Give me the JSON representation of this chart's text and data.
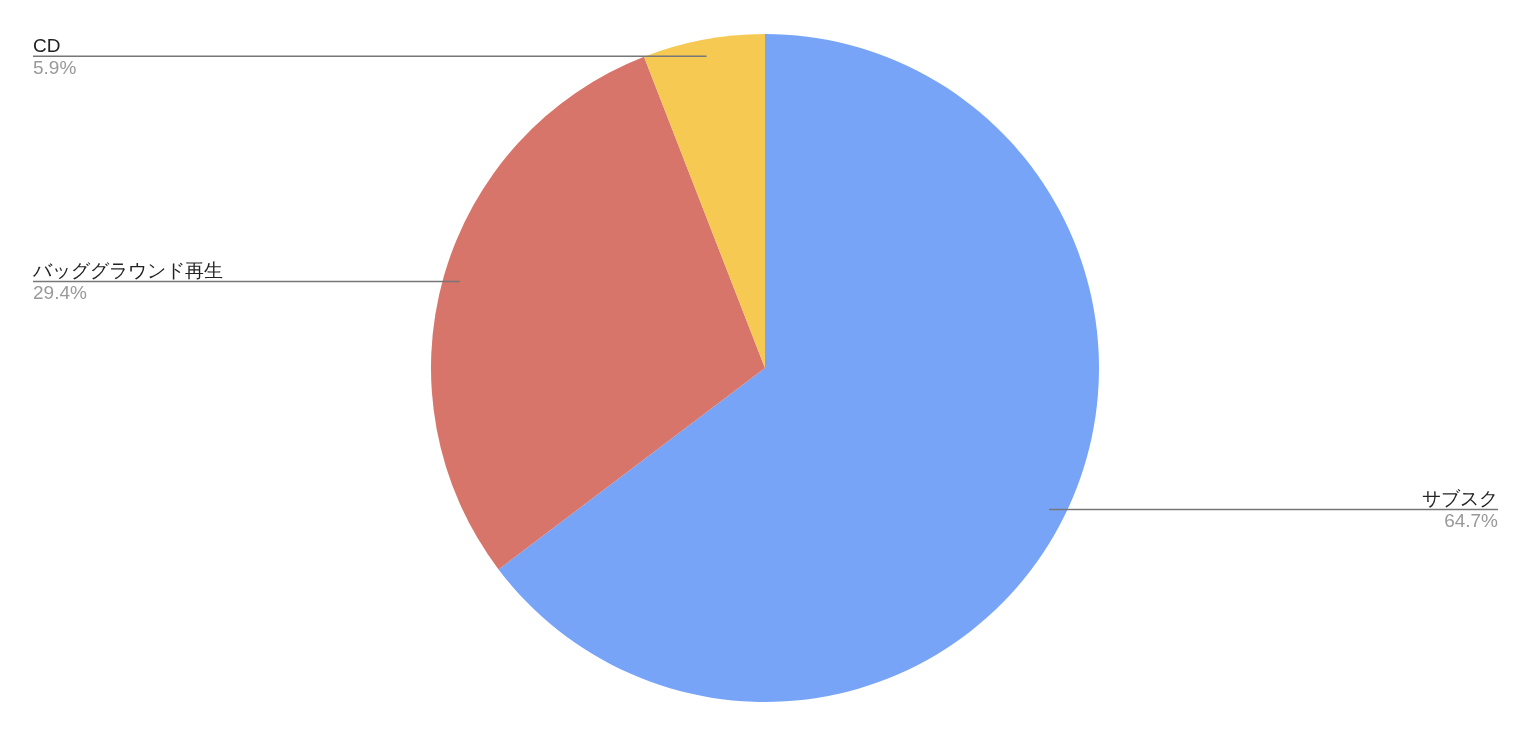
{
  "chart_data": {
    "type": "pie",
    "categories": [
      "サブスク",
      "バッググラウンド再生",
      "CD"
    ],
    "values": [
      64.7,
      29.4,
      5.9
    ],
    "value_labels": [
      "64.7%",
      "29.4%",
      "5.9%"
    ],
    "colors": [
      "#77a4f7",
      "#d7756a",
      "#f5c952"
    ]
  }
}
